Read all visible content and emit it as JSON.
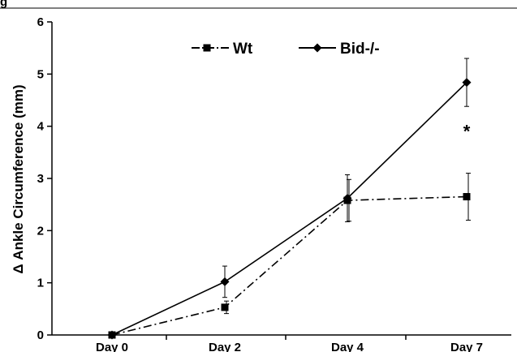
{
  "header_fragment": "g",
  "chart_data": {
    "type": "line",
    "categories": [
      "Day 0",
      "Day 2",
      "Day 4",
      "Day 7"
    ],
    "title": "",
    "xlabel": "",
    "ylabel": "Δ Ankle Circumference (mm)",
    "ylim": [
      0,
      6
    ],
    "yticks": [
      "0",
      "1",
      "2",
      "3",
      "4",
      "5",
      "6"
    ],
    "grid": false,
    "legend_position": "top",
    "series": [
      {
        "name": "Wt",
        "marker": "square",
        "line_style": "dash-dot",
        "color": "#000000",
        "values": [
          0,
          0.53,
          2.58,
          2.65
        ],
        "errors": [
          0,
          0.12,
          0.4,
          0.45
        ]
      },
      {
        "name": "Bid-/-",
        "marker": "diamond",
        "line_style": "solid",
        "color": "#000000",
        "values": [
          0,
          1.02,
          2.62,
          4.84
        ],
        "errors": [
          0,
          0.3,
          0.45,
          0.46
        ]
      }
    ],
    "annotations": [
      {
        "text": "*",
        "category": "Day 7",
        "y": 4.0
      }
    ]
  }
}
